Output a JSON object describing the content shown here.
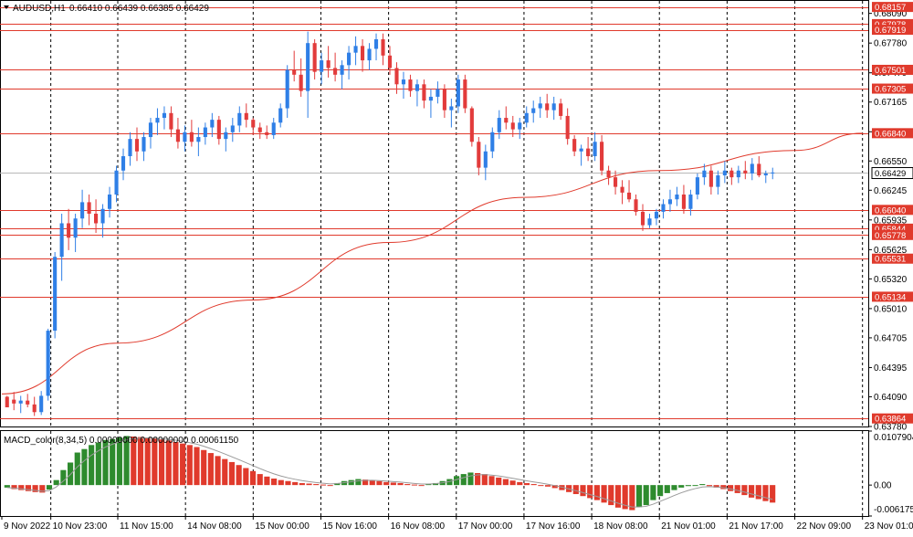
{
  "header": {
    "symbol": "AUDUSD,H1",
    "ohlc": "0.66410 0.66439 0.66385 0.66429"
  },
  "macd_header": {
    "label": "MACD_color(8,34,5) 0.00000000 0.00000000 0.00061150"
  },
  "colors": {
    "bull": "#2f7fe6",
    "bear": "#e23b3b",
    "level": "#e03a2c",
    "ma": "#e03a2c",
    "macd_pos": "#2e8b2e",
    "macd_neg": "#e03a2c",
    "grid": "#000000",
    "price_tag_bg": "#e03a2c"
  },
  "chart_data": [
    {
      "type": "candlestick",
      "title": "AUDUSD,H1",
      "y_axis_ticks": [
        0.6809,
        0.6778,
        0.6747,
        0.67165,
        0.66855,
        0.6655,
        0.66245,
        0.65935,
        0.65625,
        0.6532,
        0.6501,
        0.64705,
        0.64395,
        0.6409,
        0.6378
      ],
      "ylim": [
        0.6378,
        0.6822
      ],
      "x_axis_labels": [
        "9 Nov 2022",
        "10 Nov 23:00",
        "11 Nov 15:00",
        "14 Nov 08:00",
        "15 Nov 00:00",
        "15 Nov 16:00",
        "16 Nov 08:00",
        "17 Nov 00:00",
        "17 Nov 16:00",
        "18 Nov 08:00",
        "21 Nov 01:00",
        "21 Nov 17:00",
        "22 Nov 09:00",
        "23 Nov 01:00"
      ],
      "horizontal_levels": [
        0.68157,
        0.67978,
        0.67919,
        0.67501,
        0.67305,
        0.6684,
        0.6604,
        0.65844,
        0.65778,
        0.65531,
        0.65134,
        0.63864
      ],
      "current_price": 0.66429,
      "moving_average_anchors": [
        {
          "x": "9 Nov 2022",
          "y": 0.6412
        },
        {
          "x": "11 Nov 15:00",
          "y": 0.6465
        },
        {
          "x": "15 Nov 00:00",
          "y": 0.651
        },
        {
          "x": "16 Nov 08:00",
          "y": 0.657
        },
        {
          "x": "17 Nov 16:00",
          "y": 0.6617
        },
        {
          "x": "21 Nov 01:00",
          "y": 0.6645
        },
        {
          "x": "22 Nov 09:00",
          "y": 0.6666
        },
        {
          "x": "23 Nov 01:00",
          "y": 0.6684
        }
      ],
      "candles": [
        [
          0.6409,
          0.641,
          0.6402,
          0.6398
        ],
        [
          0.6406,
          0.6414,
          0.6395,
          0.6402
        ],
        [
          0.6402,
          0.641,
          0.6392,
          0.6405
        ],
        [
          0.6405,
          0.6412,
          0.6398,
          0.6401
        ],
        [
          0.6401,
          0.6409,
          0.6389,
          0.6393
        ],
        [
          0.6393,
          0.6415,
          0.639,
          0.641
        ],
        [
          0.641,
          0.648,
          0.6405,
          0.6478
        ],
        [
          0.6478,
          0.656,
          0.647,
          0.6555
        ],
        [
          0.6555,
          0.66,
          0.653,
          0.659
        ],
        [
          0.659,
          0.6605,
          0.6562,
          0.6575
        ],
        [
          0.6575,
          0.66,
          0.656,
          0.6595
        ],
        [
          0.6595,
          0.6625,
          0.6585,
          0.6612
        ],
        [
          0.6612,
          0.662,
          0.6588,
          0.66
        ],
        [
          0.66,
          0.6615,
          0.658,
          0.659
        ],
        [
          0.659,
          0.661,
          0.6575,
          0.6605
        ],
        [
          0.6605,
          0.6628,
          0.6596,
          0.662
        ],
        [
          0.662,
          0.665,
          0.6612,
          0.6645
        ],
        [
          0.6645,
          0.6668,
          0.6635,
          0.666
        ],
        [
          0.666,
          0.6685,
          0.665,
          0.6678
        ],
        [
          0.6678,
          0.669,
          0.6655,
          0.6665
        ],
        [
          0.6665,
          0.6685,
          0.6655,
          0.668
        ],
        [
          0.668,
          0.67,
          0.6668,
          0.6695
        ],
        [
          0.6695,
          0.671,
          0.6682,
          0.67
        ],
        [
          0.67,
          0.6712,
          0.6688,
          0.6705
        ],
        [
          0.6705,
          0.6712,
          0.668,
          0.6688
        ],
        [
          0.6688,
          0.67,
          0.6668,
          0.6675
        ],
        [
          0.6675,
          0.6692,
          0.6665,
          0.6685
        ],
        [
          0.6685,
          0.6698,
          0.667,
          0.6675
        ],
        [
          0.6675,
          0.669,
          0.666,
          0.668
        ],
        [
          0.668,
          0.6695,
          0.6672,
          0.669
        ],
        [
          0.669,
          0.6705,
          0.668,
          0.6698
        ],
        [
          0.6698,
          0.6702,
          0.6672,
          0.6678
        ],
        [
          0.6678,
          0.669,
          0.6665,
          0.6685
        ],
        [
          0.6685,
          0.67,
          0.6675,
          0.6692
        ],
        [
          0.6692,
          0.6712,
          0.6685,
          0.6705
        ],
        [
          0.6705,
          0.6715,
          0.669,
          0.6698
        ],
        [
          0.6698,
          0.67,
          0.6682,
          0.669
        ],
        [
          0.669,
          0.6695,
          0.6678,
          0.6685
        ],
        [
          0.6685,
          0.6692,
          0.6678,
          0.6682
        ],
        [
          0.6682,
          0.67,
          0.6678,
          0.6695
        ],
        [
          0.6695,
          0.6715,
          0.669,
          0.671
        ],
        [
          0.671,
          0.6755,
          0.67,
          0.675
        ],
        [
          0.675,
          0.677,
          0.6738,
          0.6745
        ],
        [
          0.6745,
          0.6762,
          0.6722,
          0.6728
        ],
        [
          0.6728,
          0.679,
          0.67,
          0.6778
        ],
        [
          0.6778,
          0.6782,
          0.674,
          0.6748
        ],
        [
          0.6748,
          0.6768,
          0.6735,
          0.676
        ],
        [
          0.676,
          0.6775,
          0.6742,
          0.6752
        ],
        [
          0.6752,
          0.6768,
          0.6738,
          0.6745
        ],
        [
          0.6745,
          0.676,
          0.673,
          0.6755
        ],
        [
          0.6755,
          0.6775,
          0.674,
          0.6768
        ],
        [
          0.6768,
          0.6785,
          0.6755,
          0.6775
        ],
        [
          0.6775,
          0.6782,
          0.6748,
          0.676
        ],
        [
          0.676,
          0.6778,
          0.675,
          0.6772
        ],
        [
          0.6772,
          0.6788,
          0.676,
          0.6782
        ],
        [
          0.6782,
          0.6788,
          0.6755,
          0.6765
        ],
        [
          0.6765,
          0.6775,
          0.6745,
          0.6752
        ],
        [
          0.6752,
          0.6758,
          0.6725,
          0.6735
        ],
        [
          0.6735,
          0.6748,
          0.672,
          0.674
        ],
        [
          0.674,
          0.6745,
          0.6722,
          0.6728
        ],
        [
          0.6728,
          0.674,
          0.6712,
          0.6735
        ],
        [
          0.6735,
          0.674,
          0.671,
          0.6718
        ],
        [
          0.6718,
          0.673,
          0.67,
          0.6722
        ],
        [
          0.6722,
          0.6738,
          0.6715,
          0.673
        ],
        [
          0.673,
          0.6735,
          0.67,
          0.6708
        ],
        [
          0.6708,
          0.672,
          0.669,
          0.6712
        ],
        [
          0.6712,
          0.6745,
          0.6705,
          0.674
        ],
        [
          0.674,
          0.6745,
          0.6705,
          0.671
        ],
        [
          0.671,
          0.6712,
          0.667,
          0.6675
        ],
        [
          0.6675,
          0.668,
          0.664,
          0.6648
        ],
        [
          0.6648,
          0.6672,
          0.6635,
          0.6665
        ],
        [
          0.6665,
          0.669,
          0.6658,
          0.6685
        ],
        [
          0.6685,
          0.6708,
          0.6678,
          0.67
        ],
        [
          0.67,
          0.6712,
          0.6688,
          0.6695
        ],
        [
          0.6695,
          0.6702,
          0.668,
          0.6688
        ],
        [
          0.6688,
          0.67,
          0.6678,
          0.6695
        ],
        [
          0.6695,
          0.6712,
          0.669,
          0.6705
        ],
        [
          0.6705,
          0.6718,
          0.6695,
          0.671
        ],
        [
          0.671,
          0.6722,
          0.67,
          0.6715
        ],
        [
          0.6715,
          0.6725,
          0.67,
          0.6708
        ],
        [
          0.6708,
          0.6722,
          0.6698,
          0.6715
        ],
        [
          0.6715,
          0.672,
          0.6698,
          0.6702
        ],
        [
          0.6702,
          0.671,
          0.6672,
          0.6678
        ],
        [
          0.6678,
          0.6682,
          0.666,
          0.6665
        ],
        [
          0.6665,
          0.6672,
          0.665,
          0.6668
        ],
        [
          0.6668,
          0.668,
          0.6655,
          0.666
        ],
        [
          0.666,
          0.6685,
          0.6655,
          0.6675
        ],
        [
          0.6675,
          0.6682,
          0.664,
          0.6645
        ],
        [
          0.6645,
          0.665,
          0.663,
          0.6638
        ],
        [
          0.6638,
          0.6645,
          0.662,
          0.6628
        ],
        [
          0.6628,
          0.6635,
          0.661,
          0.6622
        ],
        [
          0.6622,
          0.6635,
          0.6612,
          0.6615
        ],
        [
          0.6615,
          0.662,
          0.6598,
          0.6602
        ],
        [
          0.6602,
          0.661,
          0.6582,
          0.6588
        ],
        [
          0.6588,
          0.66,
          0.6585,
          0.6595
        ],
        [
          0.6595,
          0.6605,
          0.6588,
          0.6602
        ],
        [
          0.6602,
          0.6615,
          0.6595,
          0.661
        ],
        [
          0.661,
          0.6625,
          0.6602,
          0.6615
        ],
        [
          0.6615,
          0.6628,
          0.6608,
          0.662
        ],
        [
          0.662,
          0.663,
          0.66,
          0.6605
        ],
        [
          0.6605,
          0.6625,
          0.6598,
          0.662
        ],
        [
          0.662,
          0.6642,
          0.6615,
          0.6638
        ],
        [
          0.6638,
          0.6652,
          0.663,
          0.6645
        ],
        [
          0.6645,
          0.665,
          0.662,
          0.6628
        ],
        [
          0.6628,
          0.6645,
          0.662,
          0.664
        ],
        [
          0.664,
          0.6655,
          0.6632,
          0.6645
        ],
        [
          0.6645,
          0.6648,
          0.663,
          0.6638
        ],
        [
          0.6638,
          0.665,
          0.6632,
          0.6645
        ],
        [
          0.6645,
          0.6655,
          0.6636,
          0.6642
        ],
        [
          0.6642,
          0.6658,
          0.6635,
          0.6652
        ],
        [
          0.6652,
          0.666,
          0.6638,
          0.664
        ],
        [
          0.664,
          0.6645,
          0.6632,
          0.6642
        ],
        [
          0.6642,
          0.6648,
          0.6636,
          0.6643
        ]
      ]
    },
    {
      "type": "bar",
      "title": "MACD_color(8,34,5)",
      "y_axis_ticks": [
        0.0107904,
        0.0,
        -0.0061759
      ],
      "ylim": [
        -0.0061759,
        0.0107904
      ],
      "values": [
        -0.0005,
        -0.0008,
        -0.001,
        -0.0012,
        -0.0014,
        -0.0015,
        -0.0009,
        0.001,
        0.003,
        0.0045,
        0.0065,
        0.0072,
        0.008,
        0.0085,
        0.009,
        0.0092,
        0.0095,
        0.0098,
        0.0097,
        0.0096,
        0.0095,
        0.0093,
        0.0091,
        0.0089,
        0.0086,
        0.0083,
        0.008,
        0.0076,
        0.007,
        0.0064,
        0.0058,
        0.0052,
        0.0046,
        0.004,
        0.0034,
        0.0028,
        0.0022,
        0.0017,
        0.0013,
        0.001,
        0.0008,
        0.0006,
        0.0004,
        0.0003,
        0.0002,
        0.0001,
        0.0,
        0.0004,
        0.0008,
        0.001,
        0.0012,
        0.0011,
        0.001,
        0.0008,
        0.0006,
        0.0005,
        0.0004,
        0.0002,
        0.0001,
        0.0,
        0.0002,
        0.0004,
        0.0008,
        0.0012,
        0.0018,
        0.0022,
        0.0025,
        0.0024,
        0.0022,
        0.0018,
        0.0015,
        0.0012,
        0.0009,
        0.0006,
        0.0004,
        0.0002,
        0.0,
        -0.0003,
        -0.0006,
        -0.001,
        -0.0014,
        -0.0018,
        -0.0022,
        -0.0026,
        -0.003,
        -0.0035,
        -0.004,
        -0.0045,
        -0.0048,
        -0.005,
        -0.0044,
        -0.004,
        -0.003,
        -0.0022,
        -0.0016,
        -0.001,
        -0.0005,
        -0.0002,
        0.0,
        0.0002,
        -0.0002,
        -0.0005,
        -0.0008,
        -0.0012,
        -0.0016,
        -0.002,
        -0.0025,
        -0.0028,
        -0.0032,
        -0.0035
      ]
    }
  ]
}
